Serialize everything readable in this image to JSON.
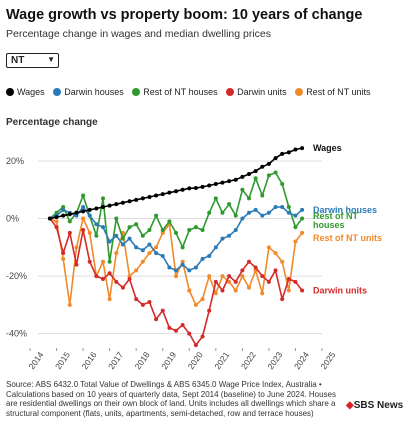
{
  "header": {
    "title": "Wage growth vs property boom: 10 years of change",
    "subtitle": "Percentage change in wages and median dwelling prices"
  },
  "selector": {
    "selected": "NT",
    "arrow_icon": "triangle-down-icon"
  },
  "legend": [
    {
      "label": "Wages",
      "color": "#000000"
    },
    {
      "label": "Darwin houses",
      "color": "#2a7ab8"
    },
    {
      "label": "Rest of NT houses",
      "color": "#2e9a2e"
    },
    {
      "label": "Darwin units",
      "color": "#d42a2a"
    },
    {
      "label": "Rest of NT units",
      "color": "#f08a2a"
    }
  ],
  "source": "Source: ABS 6432.0 Total Value of Dwellings & ABS 6345.0 Wage Price Index, Australia • Calculations based on 10 years of quarterly data, Sept 2014 (baseline) to June 2024. Houses are residential dwellings on their own block of land. Units includes all dwellings which share a structural component (flats, units, apartments, semi-detached, row and terrace houses)",
  "logo": {
    "mark": "◆",
    "text": "SBS News"
  },
  "chart_data": {
    "type": "line",
    "ylabel": "Percentage change",
    "ylim": [
      -45,
      28
    ],
    "xlim": [
      2014,
      2025
    ],
    "y_ticks": [
      20,
      0,
      -20,
      -40
    ],
    "y_tick_labels": [
      "20%",
      "0%",
      "-20%",
      "-40%"
    ],
    "x_ticks": [
      2014,
      2015,
      2016,
      2017,
      2018,
      2019,
      2020,
      2021,
      2022,
      2023,
      2024,
      2025
    ],
    "x_tick_labels": [
      "2014",
      "2015",
      "2016",
      "2017",
      "2018",
      "2019",
      "2020",
      "2021",
      "2022",
      "2023",
      "2024",
      "2025"
    ],
    "grid": true,
    "x": [
      2014.75,
      2015.0,
      2015.25,
      2015.5,
      2015.75,
      2016.0,
      2016.25,
      2016.5,
      2016.75,
      2017.0,
      2017.25,
      2017.5,
      2017.75,
      2018.0,
      2018.25,
      2018.5,
      2018.75,
      2019.0,
      2019.25,
      2019.5,
      2019.75,
      2020.0,
      2020.25,
      2020.5,
      2020.75,
      2021.0,
      2021.25,
      2021.5,
      2021.75,
      2022.0,
      2022.25,
      2022.5,
      2022.75,
      2023.0,
      2023.25,
      2023.5,
      2023.75,
      2024.0,
      2024.25
    ],
    "series": [
      {
        "name": "Wages",
        "color": "#000000",
        "markers": true,
        "end_label": "Wages",
        "values": [
          0,
          0.5,
          1.0,
          1.5,
          2.0,
          2.5,
          3.0,
          3.5,
          4.0,
          4.5,
          5.0,
          5.5,
          6.0,
          6.5,
          7.0,
          7.5,
          8.0,
          8.5,
          9.0,
          9.5,
          10.0,
          10.5,
          10.6,
          11.0,
          11.5,
          12.0,
          12.5,
          13.0,
          13.5,
          14.5,
          15.5,
          16.5,
          18.0,
          19.0,
          21.0,
          22.5,
          23.0,
          24.0,
          24.5
        ]
      },
      {
        "name": "Darwin houses",
        "color": "#2a7ab8",
        "markers": true,
        "end_label": "Darwin houses",
        "values": [
          0,
          1,
          3,
          2,
          1,
          4,
          1,
          -2,
          -3,
          -8,
          -6,
          -9,
          -7,
          -10,
          -11,
          -9,
          -12,
          -13,
          -17,
          -18,
          -16,
          -18,
          -17,
          -14,
          -13,
          -10,
          -7,
          -6,
          -4,
          0,
          2,
          3,
          1,
          2,
          4,
          4,
          2,
          1,
          3
        ]
      },
      {
        "name": "Rest of NT houses",
        "color": "#2e9a2e",
        "markers": true,
        "end_label": "Rest of NT houses",
        "values": [
          0,
          2,
          4,
          -1,
          2,
          8,
          1,
          -6,
          7,
          -15,
          0,
          -7,
          -3,
          -2,
          -6,
          -4,
          1,
          -4,
          -1,
          -5,
          -10,
          -4,
          -3,
          -4,
          2,
          7,
          2,
          5,
          1,
          10,
          7,
          14,
          8,
          15,
          16,
          12,
          4,
          -3,
          0
        ]
      },
      {
        "name": "Darwin units",
        "color": "#d42a2a",
        "markers": true,
        "end_label": "Darwin units",
        "values": [
          0,
          -3,
          -12,
          -5,
          -16,
          -4,
          -15,
          -20,
          -21,
          -19,
          -22,
          -24,
          -21,
          -28,
          -30,
          -29,
          -35,
          -32,
          -38,
          -39,
          -37,
          -40,
          -44,
          -41,
          -32,
          -22,
          -25,
          -20,
          -22,
          -18,
          -15,
          -17,
          -20,
          -22,
          -18,
          -28,
          -21,
          -22,
          -25
        ]
      },
      {
        "name": "Rest of NT units",
        "color": "#f08a2a",
        "markers": true,
        "end_label": "Rest of NT units",
        "values": [
          0,
          -1,
          -14,
          -30,
          -10,
          0,
          -5,
          -20,
          -15,
          -28,
          -12,
          -5,
          -20,
          -18,
          -15,
          -12,
          -10,
          -5,
          -2,
          -20,
          -15,
          -25,
          -30,
          -28,
          -20,
          -26,
          -20,
          -22,
          -25,
          -20,
          -24,
          -18,
          -26,
          -10,
          -12,
          -15,
          -25,
          -8,
          -5
        ]
      }
    ]
  }
}
